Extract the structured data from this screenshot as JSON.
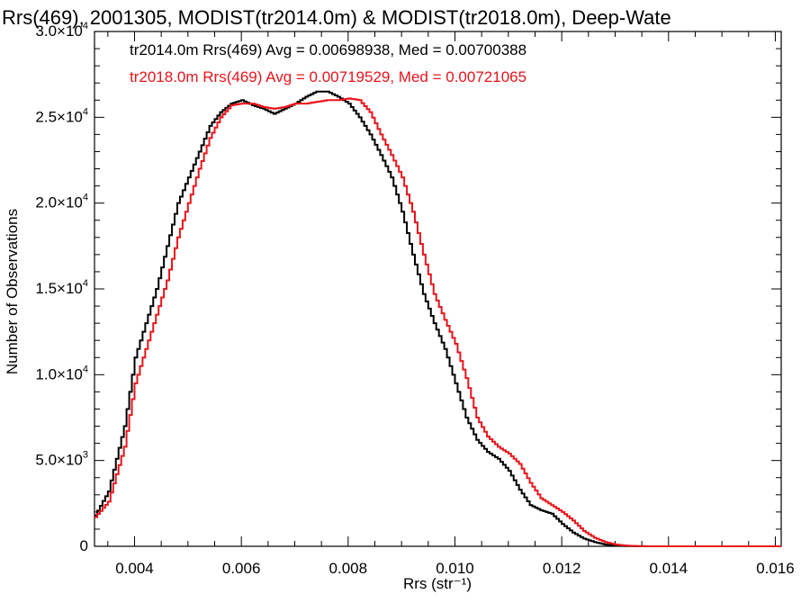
{
  "chart_data": {
    "type": "line",
    "step": true,
    "title": "Rrs(469), 2001305, MODIST(tr2014.0m) & MODIST(tr2018.0m), Deep-Wate",
    "xlabel": "Rrs (str⁻¹)",
    "ylabel": "Number of Observations",
    "xlim": [
      0.00325,
      0.01611
    ],
    "ylim": [
      0,
      30000
    ],
    "x_ticks": [
      0.004,
      0.006,
      0.008,
      0.01,
      0.012,
      0.014,
      0.016
    ],
    "x_tick_labels": [
      "0.004",
      "0.006",
      "0.008",
      "0.010",
      "0.012",
      "0.014",
      "0.016"
    ],
    "y_ticks": [
      {
        "value": 0,
        "mantissa": "0",
        "exp": ""
      },
      {
        "value": 5000,
        "mantissa": "5.0×10",
        "exp": "3"
      },
      {
        "value": 10000,
        "mantissa": "1.0×10",
        "exp": "4"
      },
      {
        "value": 15000,
        "mantissa": "1.5×10",
        "exp": "4"
      },
      {
        "value": 20000,
        "mantissa": "2.0×10",
        "exp": "4"
      },
      {
        "value": 25000,
        "mantissa": "2.5×10",
        "exp": "4"
      },
      {
        "value": 30000,
        "mantissa": "3.0×10",
        "exp": "4"
      }
    ],
    "grid": false,
    "legend_position": "top-left",
    "series": [
      {
        "name": "tr2014.0m Rrs(469) Avg = 0.00698938, Med = 0.00700388",
        "color": "#000000",
        "points": [
          [
            0.00325,
            1800
          ],
          [
            0.0035,
            3200
          ],
          [
            0.0038,
            7000
          ],
          [
            0.004,
            11000
          ],
          [
            0.0042,
            13000
          ],
          [
            0.0044,
            15000
          ],
          [
            0.0046,
            17500
          ],
          [
            0.0048,
            20000
          ],
          [
            0.005,
            21500
          ],
          [
            0.0052,
            23000
          ],
          [
            0.0054,
            24500
          ],
          [
            0.0056,
            25300
          ],
          [
            0.0058,
            25800
          ],
          [
            0.006,
            26000
          ],
          [
            0.0062,
            25700
          ],
          [
            0.0064,
            25500
          ],
          [
            0.0066,
            25200
          ],
          [
            0.0068,
            25500
          ],
          [
            0.007,
            25800
          ],
          [
            0.0072,
            26200
          ],
          [
            0.0074,
            26500
          ],
          [
            0.0076,
            26500
          ],
          [
            0.0078,
            26200
          ],
          [
            0.008,
            25800
          ],
          [
            0.0082,
            25000
          ],
          [
            0.0084,
            24000
          ],
          [
            0.0086,
            22800
          ],
          [
            0.0088,
            21500
          ],
          [
            0.009,
            19500
          ],
          [
            0.0092,
            17000
          ],
          [
            0.0094,
            14700
          ],
          [
            0.0096,
            13000
          ],
          [
            0.0098,
            11500
          ],
          [
            0.01,
            9500
          ],
          [
            0.0102,
            7500
          ],
          [
            0.0104,
            6200
          ],
          [
            0.0106,
            5500
          ],
          [
            0.0108,
            5100
          ],
          [
            0.011,
            4400
          ],
          [
            0.0112,
            3300
          ],
          [
            0.0114,
            2400
          ],
          [
            0.0116,
            2100
          ],
          [
            0.0118,
            1900
          ],
          [
            0.012,
            1300
          ],
          [
            0.0122,
            800
          ],
          [
            0.0124,
            450
          ],
          [
            0.0126,
            250
          ],
          [
            0.0128,
            100
          ],
          [
            0.013,
            40
          ],
          [
            0.0132,
            15
          ],
          [
            0.0134,
            5
          ],
          [
            0.0136,
            2
          ],
          [
            0.014,
            0
          ],
          [
            0.0161,
            0
          ]
        ]
      },
      {
        "name": "tr2018.0m Rrs(469) Avg = 0.00719529, Med = 0.00721065",
        "color": "#e8141b",
        "points": [
          [
            0.00325,
            1700
          ],
          [
            0.0035,
            2600
          ],
          [
            0.0038,
            5800
          ],
          [
            0.004,
            9500
          ],
          [
            0.0042,
            11500
          ],
          [
            0.0044,
            13500
          ],
          [
            0.0046,
            15500
          ],
          [
            0.0048,
            18000
          ],
          [
            0.005,
            20000
          ],
          [
            0.0052,
            22000
          ],
          [
            0.0054,
            23800
          ],
          [
            0.0056,
            25000
          ],
          [
            0.0058,
            25700
          ],
          [
            0.006,
            25800
          ],
          [
            0.0062,
            25800
          ],
          [
            0.0064,
            25600
          ],
          [
            0.0066,
            25500
          ],
          [
            0.0068,
            25600
          ],
          [
            0.007,
            25800
          ],
          [
            0.0072,
            25800
          ],
          [
            0.0074,
            25900
          ],
          [
            0.0076,
            26000
          ],
          [
            0.0078,
            26000
          ],
          [
            0.008,
            26100
          ],
          [
            0.0082,
            26000
          ],
          [
            0.0084,
            25300
          ],
          [
            0.0086,
            24000
          ],
          [
            0.0088,
            22800
          ],
          [
            0.009,
            21500
          ],
          [
            0.0092,
            19500
          ],
          [
            0.0094,
            17000
          ],
          [
            0.0096,
            14700
          ],
          [
            0.0098,
            13200
          ],
          [
            0.01,
            11800
          ],
          [
            0.0102,
            9800
          ],
          [
            0.0104,
            7500
          ],
          [
            0.0106,
            6400
          ],
          [
            0.0108,
            5800
          ],
          [
            0.011,
            5400
          ],
          [
            0.0112,
            4800
          ],
          [
            0.0114,
            3700
          ],
          [
            0.0116,
            2800
          ],
          [
            0.0118,
            2400
          ],
          [
            0.012,
            2000
          ],
          [
            0.0122,
            1500
          ],
          [
            0.0124,
            900
          ],
          [
            0.0126,
            500
          ],
          [
            0.0128,
            250
          ],
          [
            0.013,
            100
          ],
          [
            0.0132,
            40
          ],
          [
            0.0134,
            10
          ],
          [
            0.0136,
            3
          ],
          [
            0.014,
            0
          ],
          [
            0.0161,
            0
          ]
        ]
      }
    ]
  }
}
